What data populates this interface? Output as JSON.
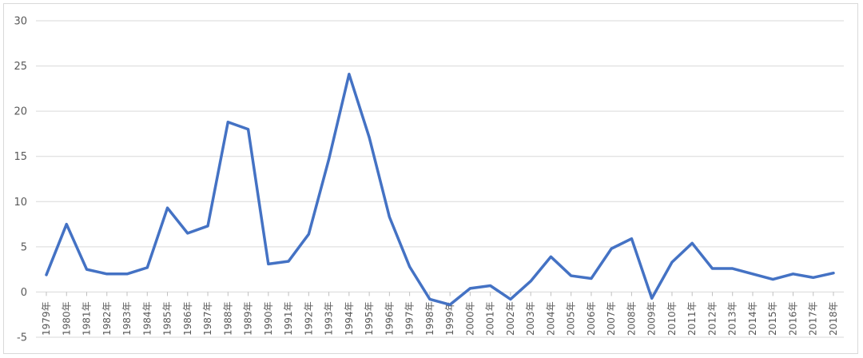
{
  "chart_data": {
    "type": "line",
    "title": "",
    "xlabel": "",
    "ylabel": "",
    "ylim": [
      -5,
      30
    ],
    "yticks": [
      30,
      25,
      20,
      15,
      10,
      5,
      0,
      -5
    ],
    "grid": true,
    "legend": "none",
    "categories": [
      "1979年",
      "1980年",
      "1981年",
      "1982年",
      "1983年",
      "1984年",
      "1985年",
      "1986年",
      "1987年",
      "1988年",
      "1989年",
      "1990年",
      "1991年",
      "1992年",
      "1993年",
      "1994年",
      "1995年",
      "1996年",
      "1997年",
      "1998年",
      "1999年",
      "2000年",
      "2001年",
      "2002年",
      "2003年",
      "2004年",
      "2005年",
      "2006年",
      "2007年",
      "2008年",
      "2009年",
      "2010年",
      "2011年",
      "2012年",
      "2013年",
      "2014年",
      "2015年",
      "2016年",
      "2017年",
      "2018年"
    ],
    "series": [
      {
        "color": "#4472c4",
        "values": [
          1.9,
          7.5,
          2.5,
          2.0,
          2.0,
          2.7,
          9.3,
          6.5,
          7.3,
          18.8,
          18.0,
          3.1,
          3.4,
          6.4,
          14.7,
          24.1,
          17.1,
          8.3,
          2.8,
          -0.8,
          -1.4,
          0.4,
          0.7,
          -0.8,
          1.2,
          3.9,
          1.8,
          1.5,
          4.8,
          5.9,
          -0.7,
          3.3,
          5.4,
          2.6,
          2.6,
          2.0,
          1.4,
          2.0,
          1.6,
          2.1
        ]
      }
    ]
  }
}
